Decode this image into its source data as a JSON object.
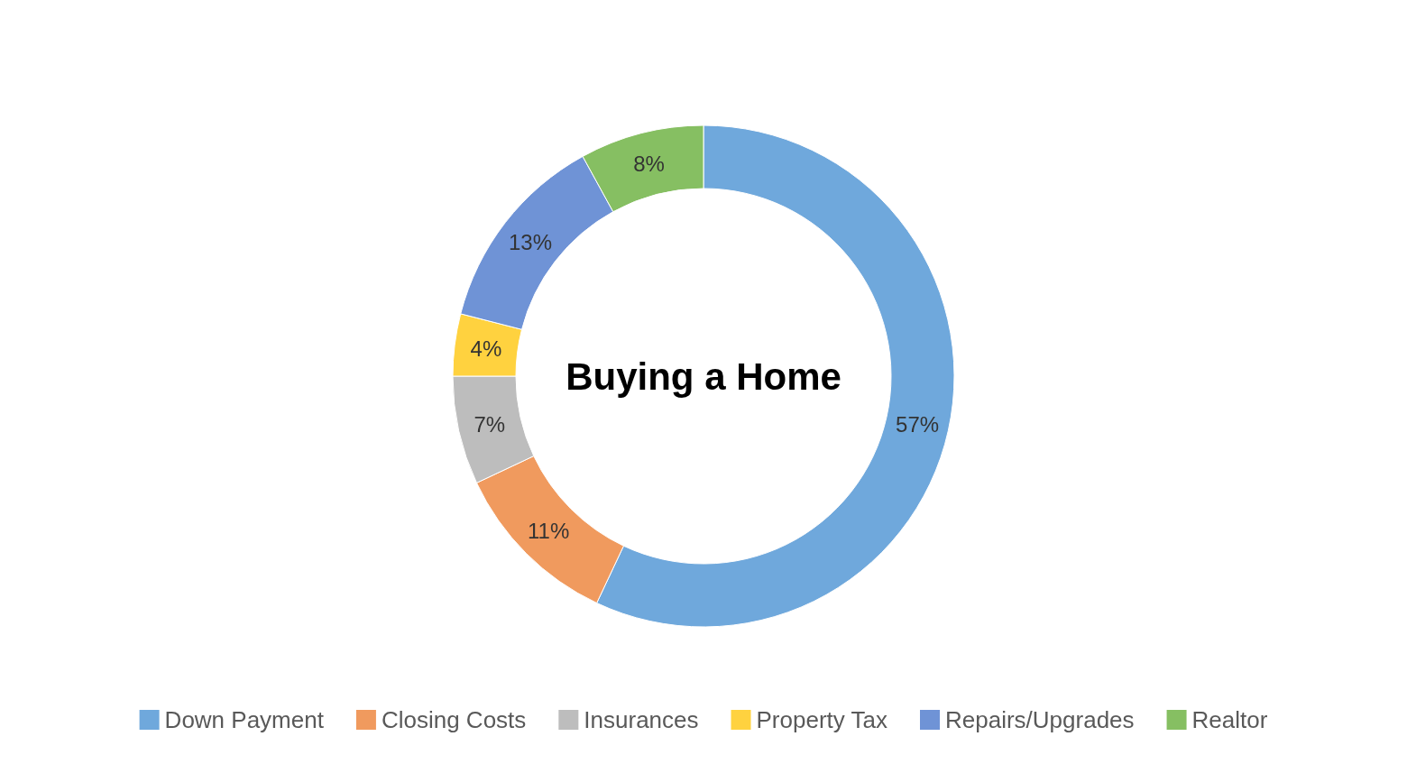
{
  "chart_data": {
    "type": "donut",
    "title": "Buying a Home",
    "categories": [
      "Down Payment",
      "Closing Costs",
      "Insurances",
      "Property Tax",
      "Repairs/Upgrades",
      "Realtor"
    ],
    "values": [
      57,
      11,
      7,
      4,
      13,
      8
    ],
    "colors": [
      "#6fa8dc",
      "#f09a5e",
      "#bdbdbd",
      "#ffd23f",
      "#6f93d6",
      "#86bf62"
    ],
    "value_labels": [
      "57%",
      "11%",
      "7%",
      "4%",
      "13%",
      "8%"
    ],
    "legend": "bottom"
  }
}
